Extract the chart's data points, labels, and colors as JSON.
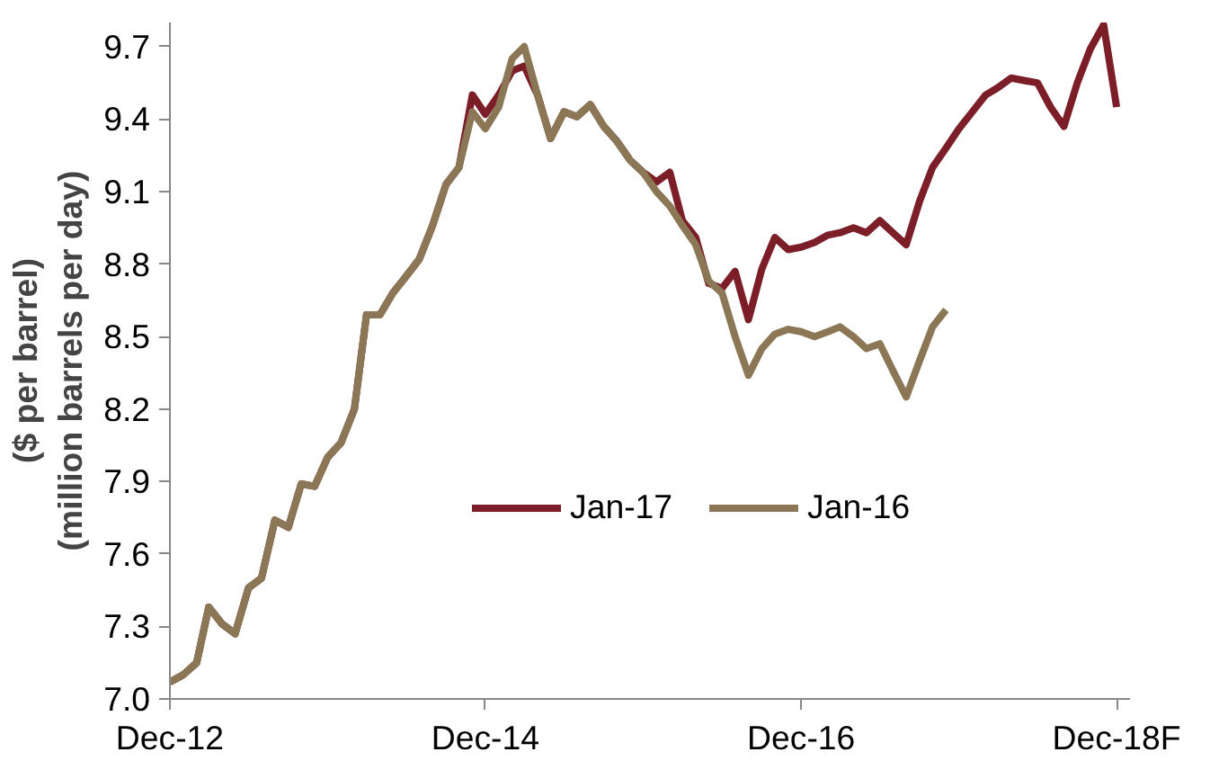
{
  "chart_data": {
    "type": "line",
    "ylabel": "($ per barrel)\n(million barrels per day)",
    "x": [
      "2012-12",
      "2013-01",
      "2013-02",
      "2013-03",
      "2013-04",
      "2013-05",
      "2013-06",
      "2013-07",
      "2013-08",
      "2013-09",
      "2013-10",
      "2013-11",
      "2013-12",
      "2014-01",
      "2014-02",
      "2014-03",
      "2014-04",
      "2014-05",
      "2014-06",
      "2014-07",
      "2014-08",
      "2014-09",
      "2014-10",
      "2014-11",
      "2014-12",
      "2015-01",
      "2015-02",
      "2015-03",
      "2015-04",
      "2015-05",
      "2015-06",
      "2015-07",
      "2015-08",
      "2015-09",
      "2015-10",
      "2015-11",
      "2015-12",
      "2016-01",
      "2016-02",
      "2016-03",
      "2016-04",
      "2016-05",
      "2016-06",
      "2016-07",
      "2016-08",
      "2016-09",
      "2016-10",
      "2016-11",
      "2016-12",
      "2017-01",
      "2017-02",
      "2017-03",
      "2017-04",
      "2017-05",
      "2017-06",
      "2017-07",
      "2017-08",
      "2017-09",
      "2017-10",
      "2017-11",
      "2017-12",
      "2018-01",
      "2018-02",
      "2018-03",
      "2018-04",
      "2018-05",
      "2018-06",
      "2018-07",
      "2018-08",
      "2018-09",
      "2018-10",
      "2018-11",
      "2018-12"
    ],
    "series": [
      {
        "name": "Jan-17",
        "color": "#7b1e28",
        "values": [
          7.07,
          7.1,
          7.15,
          7.38,
          7.31,
          7.27,
          7.46,
          7.5,
          7.74,
          7.71,
          7.89,
          7.88,
          8.0,
          8.06,
          8.2,
          8.59,
          8.59,
          8.68,
          8.75,
          8.82,
          8.96,
          9.13,
          9.2,
          9.5,
          9.42,
          9.5,
          9.6,
          9.62,
          9.5,
          9.32,
          9.43,
          9.41,
          9.46,
          9.37,
          9.31,
          9.23,
          9.18,
          9.14,
          9.18,
          8.98,
          8.91,
          8.72,
          8.7,
          8.77,
          8.57,
          8.78,
          8.91,
          8.86,
          8.87,
          8.89,
          8.92,
          8.93,
          8.95,
          8.93,
          8.98,
          8.93,
          8.88,
          9.06,
          9.2,
          9.28,
          9.36,
          9.43,
          9.5,
          9.53,
          9.57,
          9.56,
          9.55,
          9.45,
          9.37,
          9.55,
          9.69,
          9.79,
          9.45
        ]
      },
      {
        "name": "Jan-16",
        "color": "#8b7755",
        "values": [
          7.07,
          7.1,
          7.15,
          7.38,
          7.31,
          7.27,
          7.46,
          7.5,
          7.74,
          7.71,
          7.89,
          7.88,
          8.0,
          8.06,
          8.2,
          8.59,
          8.59,
          8.68,
          8.75,
          8.82,
          8.96,
          9.13,
          9.2,
          9.43,
          9.36,
          9.45,
          9.65,
          9.7,
          9.5,
          9.32,
          9.43,
          9.41,
          9.46,
          9.37,
          9.31,
          9.23,
          9.18,
          9.1,
          9.04,
          8.96,
          8.88,
          8.73,
          8.68,
          8.5,
          8.34,
          8.45,
          8.51,
          8.53,
          8.52,
          8.5,
          8.52,
          8.54,
          8.5,
          8.45,
          8.47,
          8.36,
          8.25,
          8.4,
          8.54,
          8.61,
          null,
          null,
          null,
          null,
          null,
          null,
          null,
          null,
          null,
          null,
          null,
          null,
          null
        ]
      }
    ],
    "xlim": [
      "2012-12",
      "2019-01"
    ],
    "xticks": [
      {
        "value": "2012-12",
        "label": "Dec-12"
      },
      {
        "value": "2014-12",
        "label": "Dec-14"
      },
      {
        "value": "2016-12",
        "label": "Dec-16"
      },
      {
        "value": "2018-12",
        "label": "Dec-18F"
      }
    ],
    "ylim": [
      7.0,
      9.8
    ],
    "yticks": [
      {
        "value": 7.0,
        "label": "7.0"
      },
      {
        "value": 7.3,
        "label": "7.3"
      },
      {
        "value": 7.6,
        "label": "7.6"
      },
      {
        "value": 7.9,
        "label": "7.9"
      },
      {
        "value": 8.2,
        "label": "8.2"
      },
      {
        "value": 8.5,
        "label": "8.5"
      },
      {
        "value": 8.8,
        "label": "8.8"
      },
      {
        "value": 9.1,
        "label": "9.1"
      },
      {
        "value": 9.4,
        "label": "9.4"
      },
      {
        "value": 9.7,
        "label": "9.7"
      }
    ],
    "grid": false,
    "legend": "bottom",
    "marker": "none",
    "line_style": "solid"
  }
}
